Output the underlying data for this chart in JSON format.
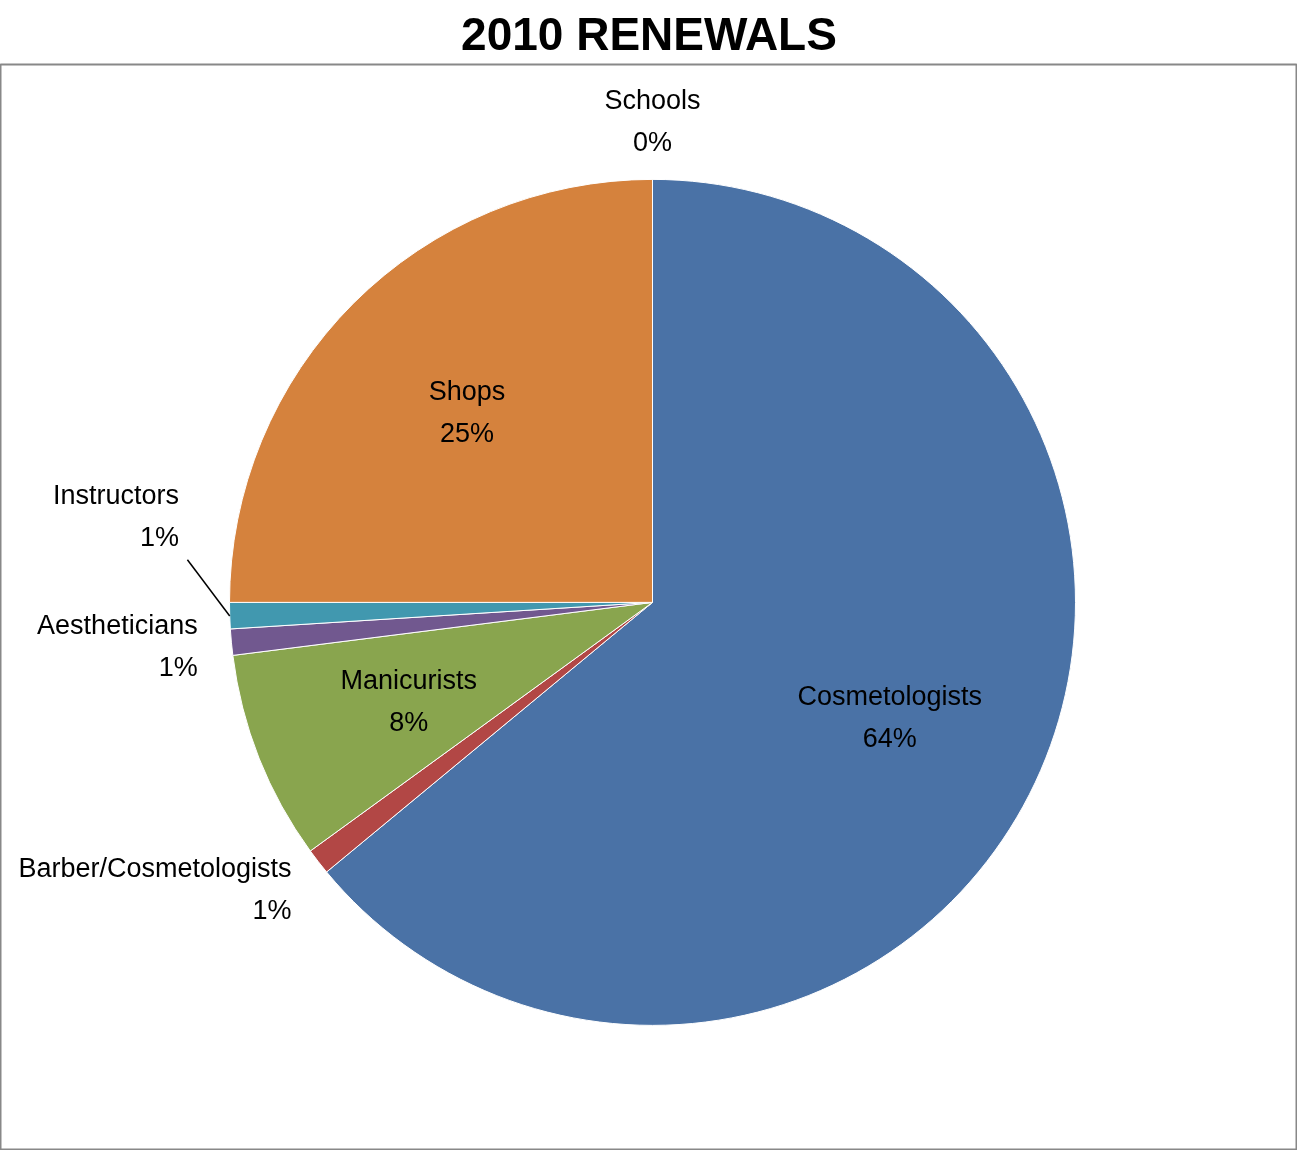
{
  "chart_data": {
    "type": "pie",
    "title": "2010 RENEWALS",
    "categories": [
      "Cosmetologists",
      "Barber/Cosmetologists",
      "Manicurists",
      "Aestheticians",
      "Instructors",
      "Shops",
      "Schools"
    ],
    "values": [
      64,
      1,
      8,
      1,
      1,
      25,
      0
    ],
    "value_labels": [
      "64%",
      "1%",
      "8%",
      "1%",
      "1%",
      "25%",
      "0%"
    ],
    "colors": [
      "#4a72a6",
      "#b24745",
      "#89a54e",
      "#71588f",
      "#4198af",
      "#d5823d",
      "#a5b9dc"
    ],
    "legend": false
  }
}
